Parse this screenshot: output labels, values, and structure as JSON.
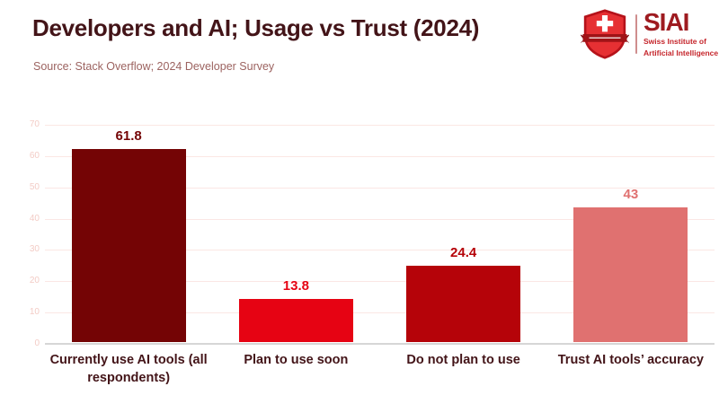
{
  "header": {
    "title": "Developers and AI; Usage vs Trust (2024)",
    "source": "Source: Stack Overflow; 2024 Developer Survey"
  },
  "logo": {
    "acronym": "SIAI",
    "subtitle_line1": "Swiss Institute of",
    "subtitle_line2": "Artificial Intelligence",
    "shield_icon": "swiss-shield-icon",
    "acronym_color": "#9e1b20",
    "subtitle_color": "#c5252b",
    "shield_red": "#e63033",
    "shield_dark": "#a01317"
  },
  "chart_data": {
    "type": "bar",
    "title": "Developers and AI; Usage vs Trust (2024)",
    "source": "Source: Stack Overflow; 2024 Developer Survey",
    "categories": [
      "Currently use AI tools (all respondents)",
      "Plan to use soon",
      "Do not plan to use",
      "Trust AI tools’ accuracy"
    ],
    "values": [
      61.8,
      13.8,
      24.4,
      43
    ],
    "value_labels": [
      "61.8",
      "13.8",
      "24.4",
      "43"
    ],
    "bar_colors": [
      "#740405",
      "#e60313",
      "#b50309",
      "#e07170"
    ],
    "label_colors": [
      "#740405",
      "#e60313",
      "#b50309",
      "#e07170"
    ],
    "xlabel": "",
    "ylabel": "",
    "ylim": [
      0,
      70
    ],
    "yticks": [
      0,
      10,
      20,
      30,
      40,
      50,
      60,
      70
    ],
    "grid": true,
    "legend": false,
    "gridline_color": "#fbe7e4",
    "axis_line_color": "#d6d6d6",
    "tick_label_color": "#f3ccc6"
  },
  "colors": {
    "title": "#431418",
    "source_text": "#9c6360",
    "category_label": "#431418",
    "background": "#ffffff"
  }
}
